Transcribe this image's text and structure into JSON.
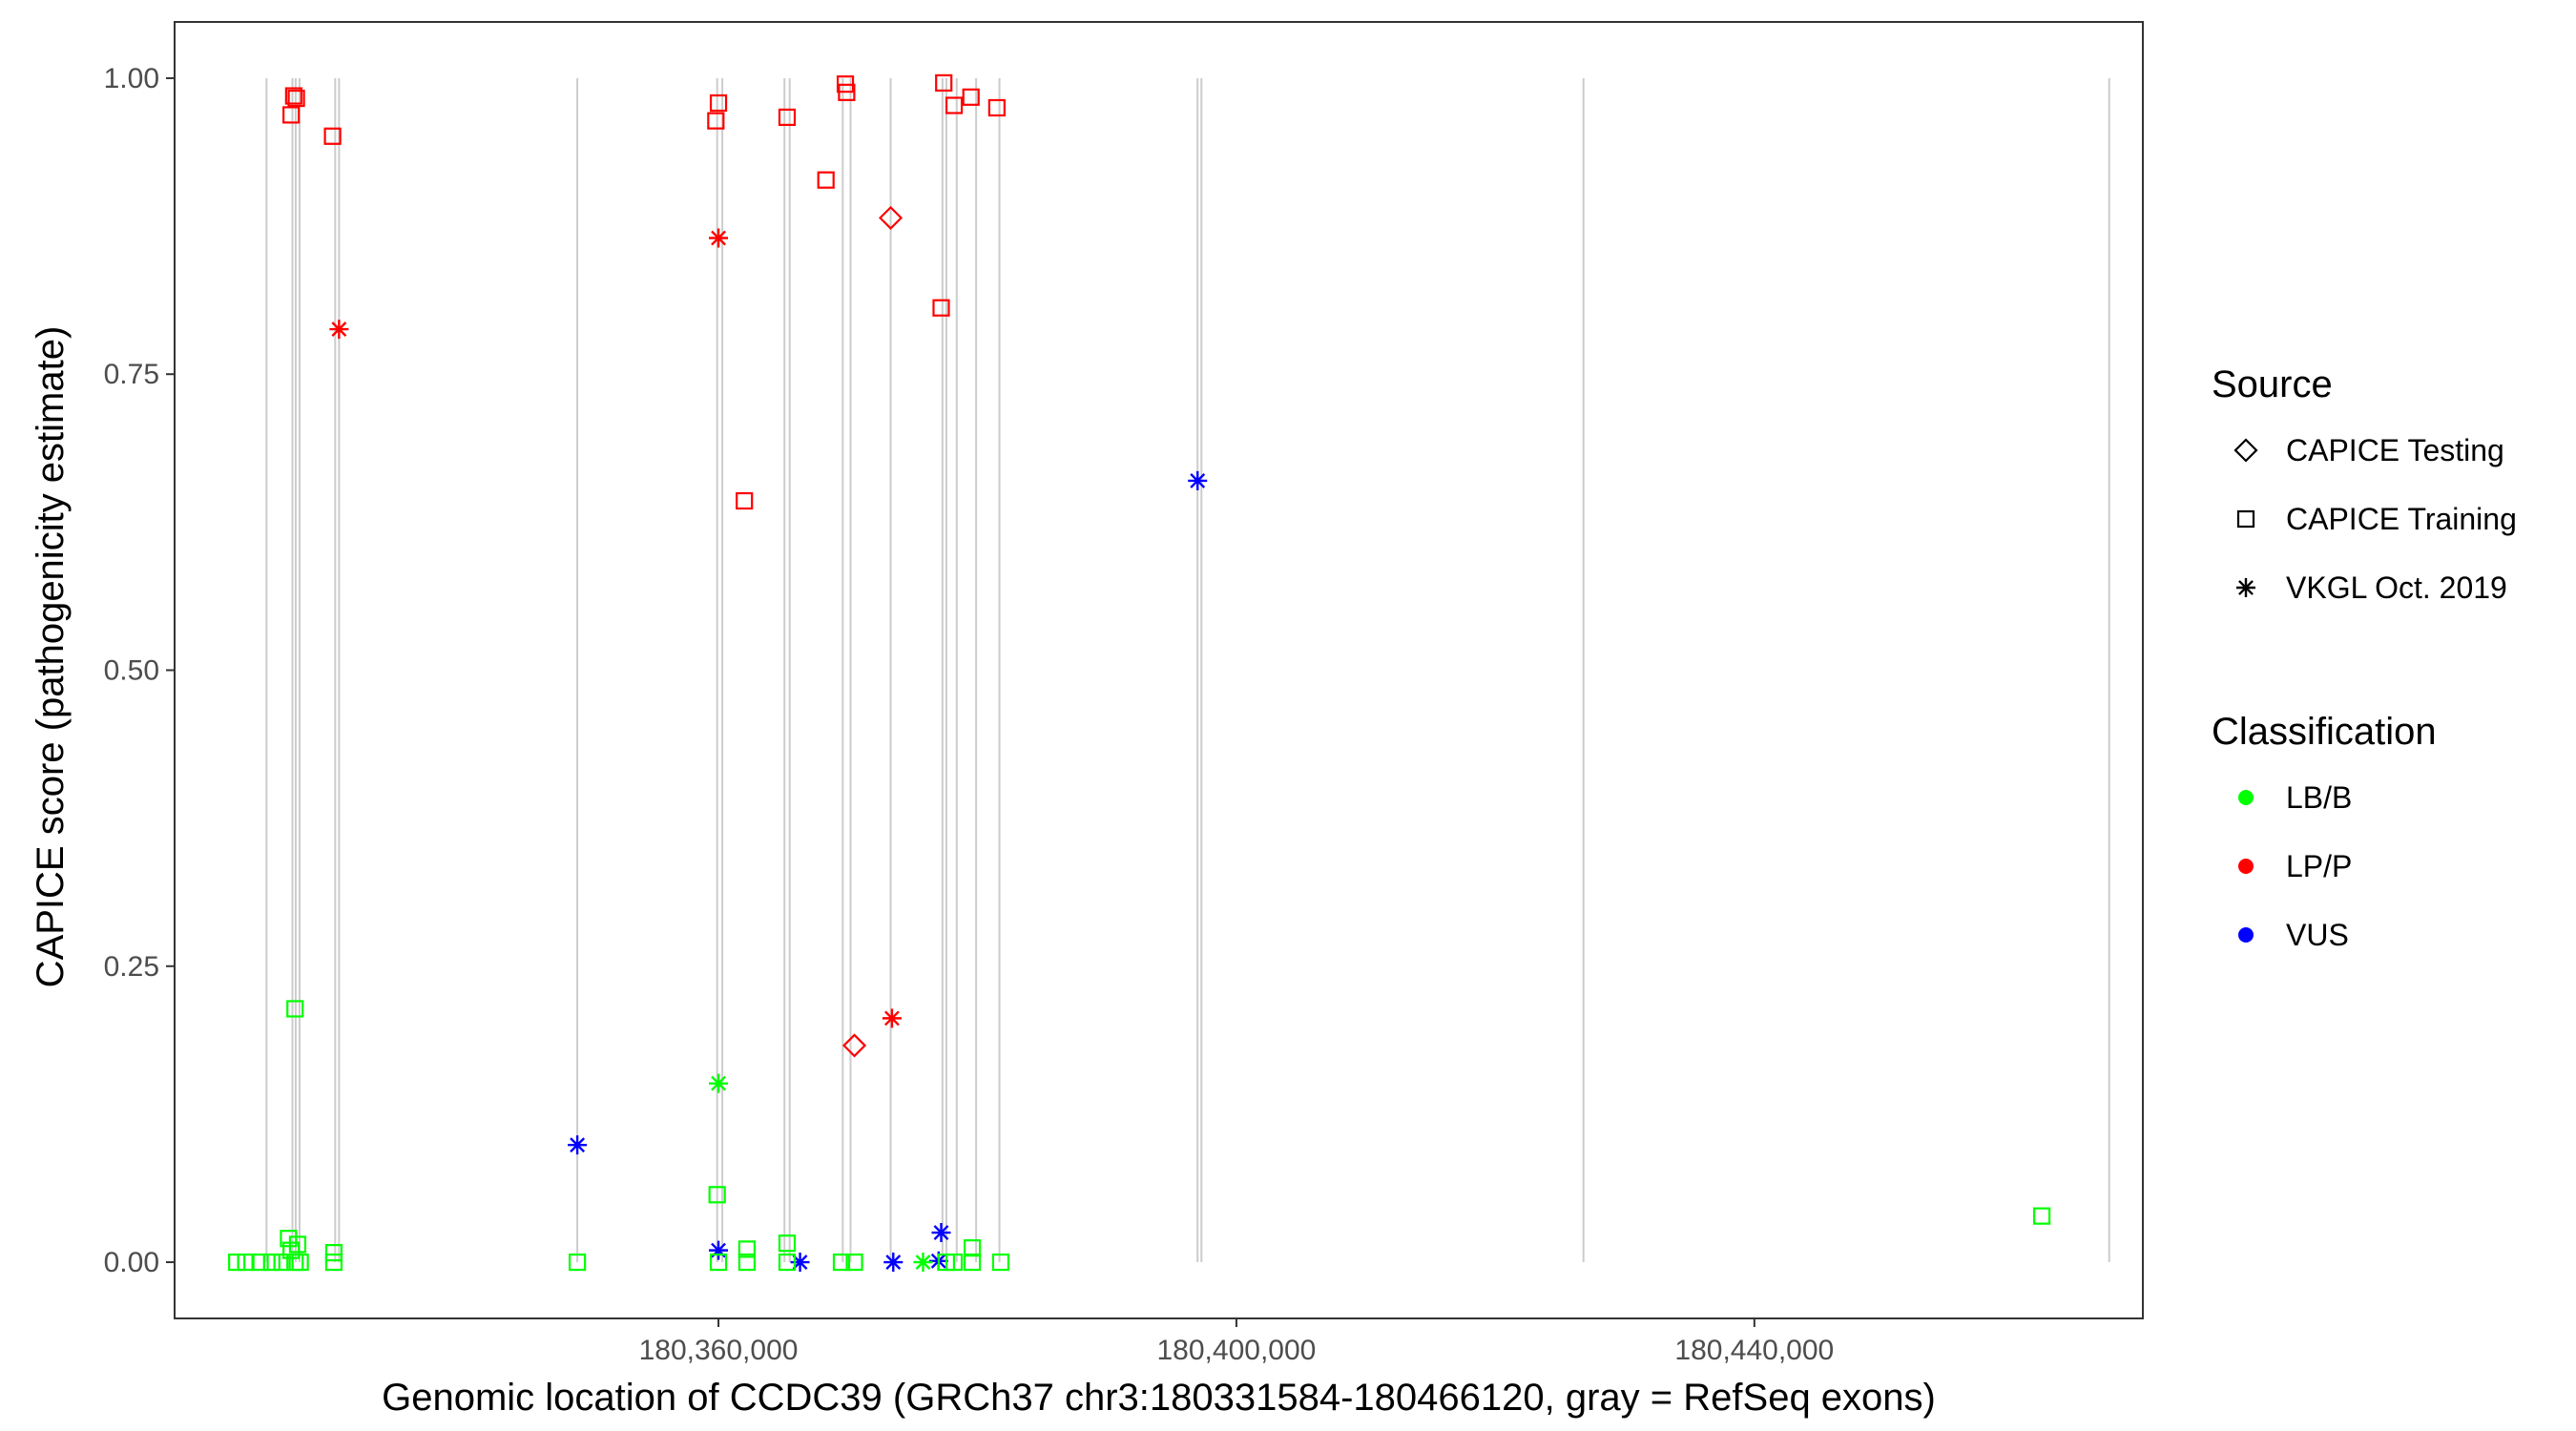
{
  "chart_data": {
    "type": "scatter",
    "xlabel": "Genomic location of CCDC39 (GRCh37 chr3:180331584-180466120, gray = RefSeq exons)",
    "ylabel": "CAPICE score (pathogenicity estimate)",
    "xlim": [
      180318000,
      180470000
    ],
    "ylim": [
      -0.0475,
      1.0475
    ],
    "x_ticks": [
      180360000,
      180400000,
      180440000
    ],
    "x_tick_labels": [
      "180,360,000",
      "180,400,000",
      "180,440,000"
    ],
    "y_ticks": [
      0,
      0.25,
      0.5,
      0.75,
      1.0
    ],
    "y_tick_labels": [
      "0.00",
      "0.25",
      "0.50",
      "0.75",
      "1.00"
    ],
    "grid": false,
    "exon_positions": [
      180325100,
      180327100,
      180327350,
      180327650,
      180330400,
      180330700,
      180349100,
      180359900,
      180360300,
      180365100,
      180365500,
      180369600,
      180370200,
      180373300,
      180377300,
      180377600,
      180378400,
      180379900,
      180381700,
      180397000,
      180397300,
      180426800,
      180467400
    ],
    "exon_color": "#cccccc",
    "legend": {
      "position": "right",
      "source": {
        "title": "Source",
        "items": [
          {
            "label": "CAPICE Testing",
            "shape": "diamond"
          },
          {
            "label": "CAPICE Training",
            "shape": "square"
          },
          {
            "label": "VKGL Oct. 2019",
            "shape": "asterisk"
          }
        ]
      },
      "classification": {
        "title": "Classification",
        "items": [
          {
            "label": "LB/B",
            "color": "#00ff00"
          },
          {
            "label": "LP/P",
            "color": "#ff0000"
          },
          {
            "label": "VUS",
            "color": "#0000ff"
          }
        ]
      }
    },
    "series": [
      {
        "source": "CAPICE Training",
        "classification": "LP/P",
        "points": [
          {
            "x": 180327200,
            "y": 0.985
          },
          {
            "x": 180327400,
            "y": 0.983
          },
          {
            "x": 180327000,
            "y": 0.969
          },
          {
            "x": 180330200,
            "y": 0.951
          },
          {
            "x": 180360000,
            "y": 0.979
          },
          {
            "x": 180359800,
            "y": 0.964
          },
          {
            "x": 180365300,
            "y": 0.967
          },
          {
            "x": 180369800,
            "y": 0.995
          },
          {
            "x": 180369900,
            "y": 0.988
          },
          {
            "x": 180368300,
            "y": 0.914
          },
          {
            "x": 180377400,
            "y": 0.996
          },
          {
            "x": 180378200,
            "y": 0.977
          },
          {
            "x": 180379500,
            "y": 0.984
          },
          {
            "x": 180381500,
            "y": 0.975
          },
          {
            "x": 180377200,
            "y": 0.806
          },
          {
            "x": 180362000,
            "y": 0.643
          }
        ]
      },
      {
        "source": "CAPICE Testing",
        "classification": "LP/P",
        "points": [
          {
            "x": 180373300,
            "y": 0.882
          },
          {
            "x": 180370500,
            "y": 0.183
          }
        ]
      },
      {
        "source": "VKGL Oct. 2019",
        "classification": "LP/P",
        "points": [
          {
            "x": 180330700,
            "y": 0.788
          },
          {
            "x": 180360000,
            "y": 0.865
          },
          {
            "x": 180373400,
            "y": 0.206
          }
        ]
      },
      {
        "source": "VKGL Oct. 2019",
        "classification": "VUS",
        "points": [
          {
            "x": 180397000,
            "y": 0.66
          },
          {
            "x": 180349100,
            "y": 0.099
          },
          {
            "x": 180360000,
            "y": 0.01
          },
          {
            "x": 180366300,
            "y": 0.0
          },
          {
            "x": 180373500,
            "y": 0.0
          },
          {
            "x": 180377200,
            "y": 0.025
          },
          {
            "x": 180377000,
            "y": 0.001
          }
        ]
      },
      {
        "source": "VKGL Oct. 2019",
        "classification": "LB/B",
        "points": [
          {
            "x": 180360000,
            "y": 0.151
          },
          {
            "x": 180375800,
            "y": 0.0
          }
        ]
      },
      {
        "source": "CAPICE Training",
        "classification": "LB/B",
        "points": [
          {
            "x": 180327300,
            "y": 0.214
          },
          {
            "x": 180359900,
            "y": 0.057
          },
          {
            "x": 180462200,
            "y": 0.039
          },
          {
            "x": 180322800,
            "y": 0.0
          },
          {
            "x": 180323500,
            "y": 0.0
          },
          {
            "x": 180324600,
            "y": 0.0
          },
          {
            "x": 180325500,
            "y": 0.0
          },
          {
            "x": 180326300,
            "y": 0.0
          },
          {
            "x": 180326800,
            "y": 0.02
          },
          {
            "x": 180327000,
            "y": 0.01
          },
          {
            "x": 180327300,
            "y": 0.0
          },
          {
            "x": 180327500,
            "y": 0.015
          },
          {
            "x": 180327700,
            "y": 0.0
          },
          {
            "x": 180330300,
            "y": 0.008
          },
          {
            "x": 180330300,
            "y": 0.0
          },
          {
            "x": 180349100,
            "y": 0.0
          },
          {
            "x": 180360000,
            "y": 0.0
          },
          {
            "x": 180362200,
            "y": 0.011
          },
          {
            "x": 180362200,
            "y": 0.0
          },
          {
            "x": 180365300,
            "y": 0.016
          },
          {
            "x": 180365300,
            "y": 0.0
          },
          {
            "x": 180369500,
            "y": 0.0
          },
          {
            "x": 180370500,
            "y": 0.0
          },
          {
            "x": 180377600,
            "y": 0.0
          },
          {
            "x": 180378200,
            "y": 0.0
          },
          {
            "x": 180379600,
            "y": 0.012
          },
          {
            "x": 180379600,
            "y": 0.0
          },
          {
            "x": 180381800,
            "y": 0.0
          }
        ]
      }
    ]
  }
}
